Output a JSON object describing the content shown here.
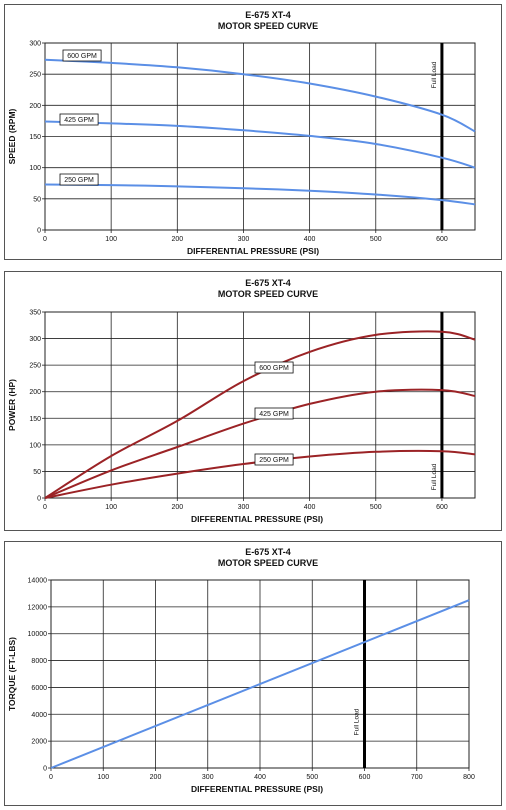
{
  "chart_data": [
    {
      "type": "line",
      "title": "E-675 XT-4",
      "subtitle": "MOTOR SPEED CURVE",
      "xlabel": "DIFFERENTIAL PRESSURE (PSI)",
      "ylabel": "SPEED (RPM)",
      "xlim": [
        0,
        650
      ],
      "ylim": [
        0,
        300
      ],
      "xticks": [
        0,
        100,
        200,
        300,
        400,
        500,
        600
      ],
      "yticks": [
        0,
        50,
        100,
        150,
        200,
        250,
        300
      ],
      "grid": true,
      "color": "#5b8fe6",
      "x": [
        0,
        100,
        200,
        300,
        400,
        500,
        600,
        650
      ],
      "series": [
        {
          "name": "600 GPM",
          "values": [
            273,
            268,
            261,
            250,
            235,
            214,
            185,
            158
          ]
        },
        {
          "name": "425 GPM",
          "values": [
            174,
            171,
            167,
            160,
            151,
            138,
            116,
            100
          ]
        },
        {
          "name": "250 GPM",
          "values": [
            73,
            72,
            70,
            67,
            63,
            57,
            48,
            41
          ]
        }
      ],
      "annotation": "Full Load",
      "annotation_x": 600
    },
    {
      "type": "line",
      "title": "E-675 XT-4",
      "subtitle": "MOTOR SPEED CURVE",
      "xlabel": "DIFFERENTIAL PRESSURE (PSI)",
      "ylabel": "POWER (HP)",
      "xlim": [
        0,
        650
      ],
      "ylim": [
        0,
        350
      ],
      "xticks": [
        0,
        100,
        200,
        300,
        400,
        500,
        600
      ],
      "yticks": [
        0,
        50,
        100,
        150,
        200,
        250,
        300,
        350
      ],
      "grid": true,
      "color": "#9b2326",
      "x": [
        0,
        100,
        200,
        300,
        400,
        500,
        600,
        650
      ],
      "series": [
        {
          "name": "600 GPM",
          "values": [
            0,
            79,
            145,
            220,
            275,
            307,
            313,
            298
          ]
        },
        {
          "name": "425 GPM",
          "values": [
            0,
            52,
            96,
            140,
            177,
            200,
            203,
            192
          ]
        },
        {
          "name": "250 GPM",
          "values": [
            0,
            25,
            46,
            64,
            78,
            87,
            88,
            82
          ]
        }
      ],
      "annotation": "Full Load",
      "annotation_x": 600
    },
    {
      "type": "line",
      "title": "E-675 XT-4",
      "subtitle": "MOTOR SPEED CURVE",
      "xlabel": "DIFFERENTIAL PRESSURE (PSI)",
      "ylabel": "TORQUE (FT-LBS)",
      "xlim": [
        0,
        800
      ],
      "ylim": [
        0,
        14000
      ],
      "xticks": [
        0,
        100,
        200,
        300,
        400,
        500,
        600,
        700,
        800
      ],
      "yticks": [
        0,
        2000,
        4000,
        6000,
        8000,
        10000,
        12000,
        14000
      ],
      "grid": true,
      "color": "#5b8fe6",
      "x": [
        0,
        800
      ],
      "series": [
        {
          "values": [
            0,
            12500
          ]
        }
      ],
      "annotation": "Full Load",
      "annotation_x": 600
    }
  ]
}
